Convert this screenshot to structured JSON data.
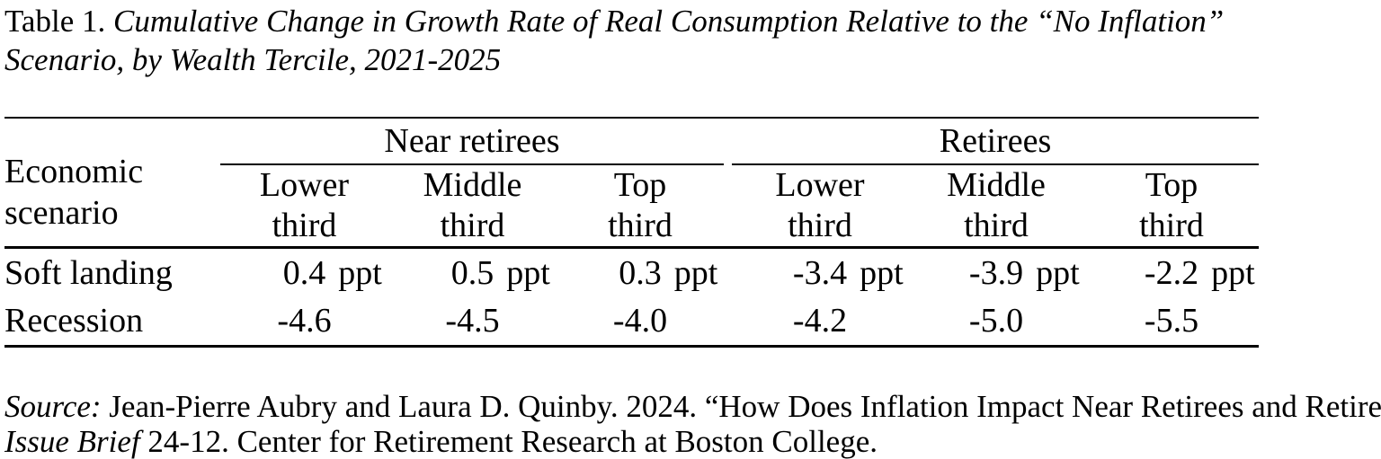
{
  "colors": {
    "background": "#ffffff",
    "text": "#000000",
    "rule": "#000000"
  },
  "title": {
    "prefix": "Table 1. ",
    "line1_italic": "Cumulative Change in Growth Rate of Real Consumption Relative to the “No Inflation”",
    "line2_italic": "Scenario, by Wealth Tercile, 2021-2025"
  },
  "table": {
    "row_header": {
      "line1": "Economic",
      "line2": "scenario"
    },
    "groups": [
      {
        "label": "Near retirees"
      },
      {
        "label": "Retirees"
      }
    ],
    "columns": [
      {
        "line1": "Lower",
        "line2": "third"
      },
      {
        "line1": "Middle",
        "line2": "third"
      },
      {
        "line1": "Top",
        "line2": "third"
      },
      {
        "line1": "Lower",
        "line2": "third"
      },
      {
        "line1": "Middle",
        "line2": "third"
      },
      {
        "line1": "Top",
        "line2": "third"
      }
    ],
    "rows": [
      {
        "label": "Soft landing",
        "values": [
          {
            "num": "0.4",
            "unit": "ppt"
          },
          {
            "num": "0.5",
            "unit": "ppt"
          },
          {
            "num": "0.3",
            "unit": "ppt"
          },
          {
            "num": "-3.4",
            "unit": "ppt"
          },
          {
            "num": "-3.9",
            "unit": "ppt"
          },
          {
            "num": "-2.2",
            "unit": "ppt"
          }
        ]
      },
      {
        "label": "Recession",
        "values": [
          {
            "num": "-4.6",
            "unit": ""
          },
          {
            "num": "-4.5",
            "unit": ""
          },
          {
            "num": "-4.0",
            "unit": ""
          },
          {
            "num": "-4.2",
            "unit": ""
          },
          {
            "num": "-5.0",
            "unit": ""
          },
          {
            "num": "-5.5",
            "unit": ""
          }
        ]
      }
    ]
  },
  "source": {
    "label_italic": "Source:",
    "line1_rest": " Jean-Pierre Aubry and Laura D. Quinby. 2024. “How Does Inflation Impact Near Retirees and Retirees?”",
    "line2_label_italic": "Issue Brief",
    "line2_rest": " 24-12. Center for Retirement Research at Boston College."
  }
}
